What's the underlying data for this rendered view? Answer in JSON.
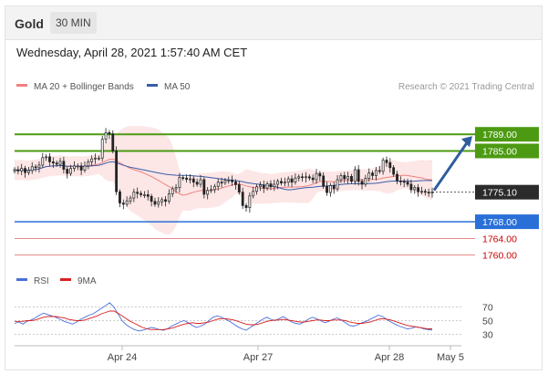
{
  "header": {
    "symbol": "Gold",
    "timeframe": "30 MIN"
  },
  "date_line": "Wednesday, April 28, 2021 1:57:40 AM CET",
  "legend": {
    "ma_bb": "MA 20 + Bollinger Bands",
    "ma50": "MA 50",
    "credit": "Research © 2021 Trading Central",
    "rsi": "RSI",
    "ma9": "9MA"
  },
  "colors": {
    "up_candle": "#ffffff",
    "down_candle": "#222222",
    "resistance": "#4c9a12",
    "support": "#2a6fd8",
    "lower_support": "#cc0000",
    "bollinger_fill": "#fde0e0",
    "ma20": "#f08080",
    "ma50": "#3a5ea8",
    "arrow": "#2f5c9e",
    "rsi": "#4a6fd8",
    "rsi_ma": "#d92020"
  },
  "chart_data": [
    {
      "type": "candlestick",
      "title": "",
      "x_tick_labels": [
        "Apr 24",
        "Apr 27",
        "Apr 28",
        "May 5"
      ],
      "y_range": [
        1754,
        1800
      ],
      "ohlc_close_approx": [
        1780.5,
        1780.2,
        1780.8,
        1779.8,
        1780.3,
        1781.2,
        1781.0,
        1781.6,
        1783.4,
        1783.6,
        1782.4,
        1782.1,
        1781.8,
        1782.5,
        1780.6,
        1779.6,
        1780.8,
        1781.4,
        1781.4,
        1780.4,
        1781.4,
        1782.4,
        1783.1,
        1783.3,
        1783.3,
        1787.8,
        1789.4,
        1789.1,
        1785.0,
        1775.2,
        1772.5,
        1772.2,
        1773.0,
        1773.7,
        1775.1,
        1774.8,
        1774.5,
        1774.5,
        1774.1,
        1772.9,
        1772.2,
        1772.8,
        1773.3,
        1772.9,
        1774.7,
        1775.9,
        1776.2,
        1778.6,
        1778.5,
        1778.2,
        1778.3,
        1777.5,
        1777.0,
        1778.1,
        1774.6,
        1775.5,
        1775.7,
        1776.5,
        1777.5,
        1777.4,
        1777.9,
        1778.0,
        1777.6,
        1776.9,
        1775.1,
        1771.9,
        1771.4,
        1774.2,
        1775.3,
        1776.4,
        1776.8,
        1776.1,
        1777.1,
        1776.4,
        1777.0,
        1777.7,
        1777.3,
        1777.5,
        1778.3,
        1777.5,
        1778.5,
        1778.8,
        1778.6,
        1778.8,
        1778.5,
        1778.1,
        1779.6,
        1779.0,
        1776.5,
        1775.0,
        1776.7,
        1775.9,
        1778.1,
        1779.1,
        1778.3,
        1778.9,
        1777.7,
        1780.5,
        1777.7,
        1777.0,
        1778.4,
        1779.7,
        1779.1,
        1780.3,
        1780.1,
        1782.8,
        1782.2,
        1781.0,
        1779.4,
        1777.8,
        1777.7,
        1777.5,
        1777.0,
        1775.7,
        1776.2,
        1775.2,
        1775.3,
        1775.1,
        1775.0,
        1775.1
      ],
      "overlays": [
        "MA 20 + Bollinger Bands",
        "MA 50"
      ],
      "levels": [
        {
          "value": "1789.00",
          "kind": "resistance"
        },
        {
          "value": "1785.00",
          "kind": "resistance"
        },
        {
          "value": "1775.10",
          "kind": "last_price"
        },
        {
          "value": "1768.00",
          "kind": "support"
        },
        {
          "value": "1764.00",
          "kind": "support"
        },
        {
          "value": "1760.00",
          "kind": "support"
        }
      ],
      "arrow": {
        "from": 1775.1,
        "to": 1789.0,
        "direction": "up"
      }
    },
    {
      "type": "line",
      "title": "",
      "series": [
        {
          "name": "RSI",
          "values": [
            46,
            48,
            45,
            49,
            51,
            54,
            58,
            61,
            59,
            57,
            55,
            52,
            49,
            47,
            45,
            48,
            52,
            55,
            58,
            60,
            64,
            68,
            72,
            76,
            70,
            60,
            50,
            44,
            40,
            37,
            35,
            36,
            38,
            40,
            39,
            37,
            36,
            38,
            42,
            45,
            48,
            50,
            47,
            43,
            40,
            42,
            45,
            50,
            55,
            57,
            55,
            52,
            49,
            45,
            41,
            38,
            36,
            40,
            44,
            48,
            52,
            55,
            52,
            50,
            53,
            56,
            52,
            48,
            46,
            45,
            48,
            52,
            55,
            53,
            50,
            47,
            49,
            52,
            54,
            51,
            47,
            43,
            42,
            44,
            47,
            49,
            52,
            55,
            58,
            56,
            52,
            48,
            45,
            42,
            40,
            38,
            39,
            41,
            40,
            38,
            37,
            36
          ]
        },
        {
          "name": "9MA",
          "values": [
            49,
            49,
            49,
            50,
            50,
            51,
            53,
            55,
            56,
            56,
            56,
            55,
            54,
            52,
            51,
            50,
            50,
            51,
            53,
            55,
            57,
            60,
            62,
            64,
            64,
            61,
            57,
            53,
            49,
            46,
            43,
            40,
            38,
            37,
            37,
            37,
            37,
            38,
            39,
            41,
            43,
            45,
            46,
            47,
            46,
            46,
            47,
            48,
            50,
            52,
            53,
            53,
            52,
            51,
            49,
            47,
            45,
            44,
            44,
            45,
            47,
            49,
            50,
            51,
            51,
            52,
            51,
            50,
            49,
            48,
            48,
            49,
            50,
            51,
            51,
            50,
            50,
            51,
            51,
            51,
            50,
            48,
            47,
            46,
            46,
            47,
            48,
            50,
            52,
            53,
            52,
            51,
            49,
            47,
            45,
            43,
            42,
            41,
            40,
            39,
            38,
            38
          ]
        }
      ],
      "y_ticks": [
        70,
        50,
        30
      ],
      "y_range": [
        0,
        100
      ]
    }
  ]
}
